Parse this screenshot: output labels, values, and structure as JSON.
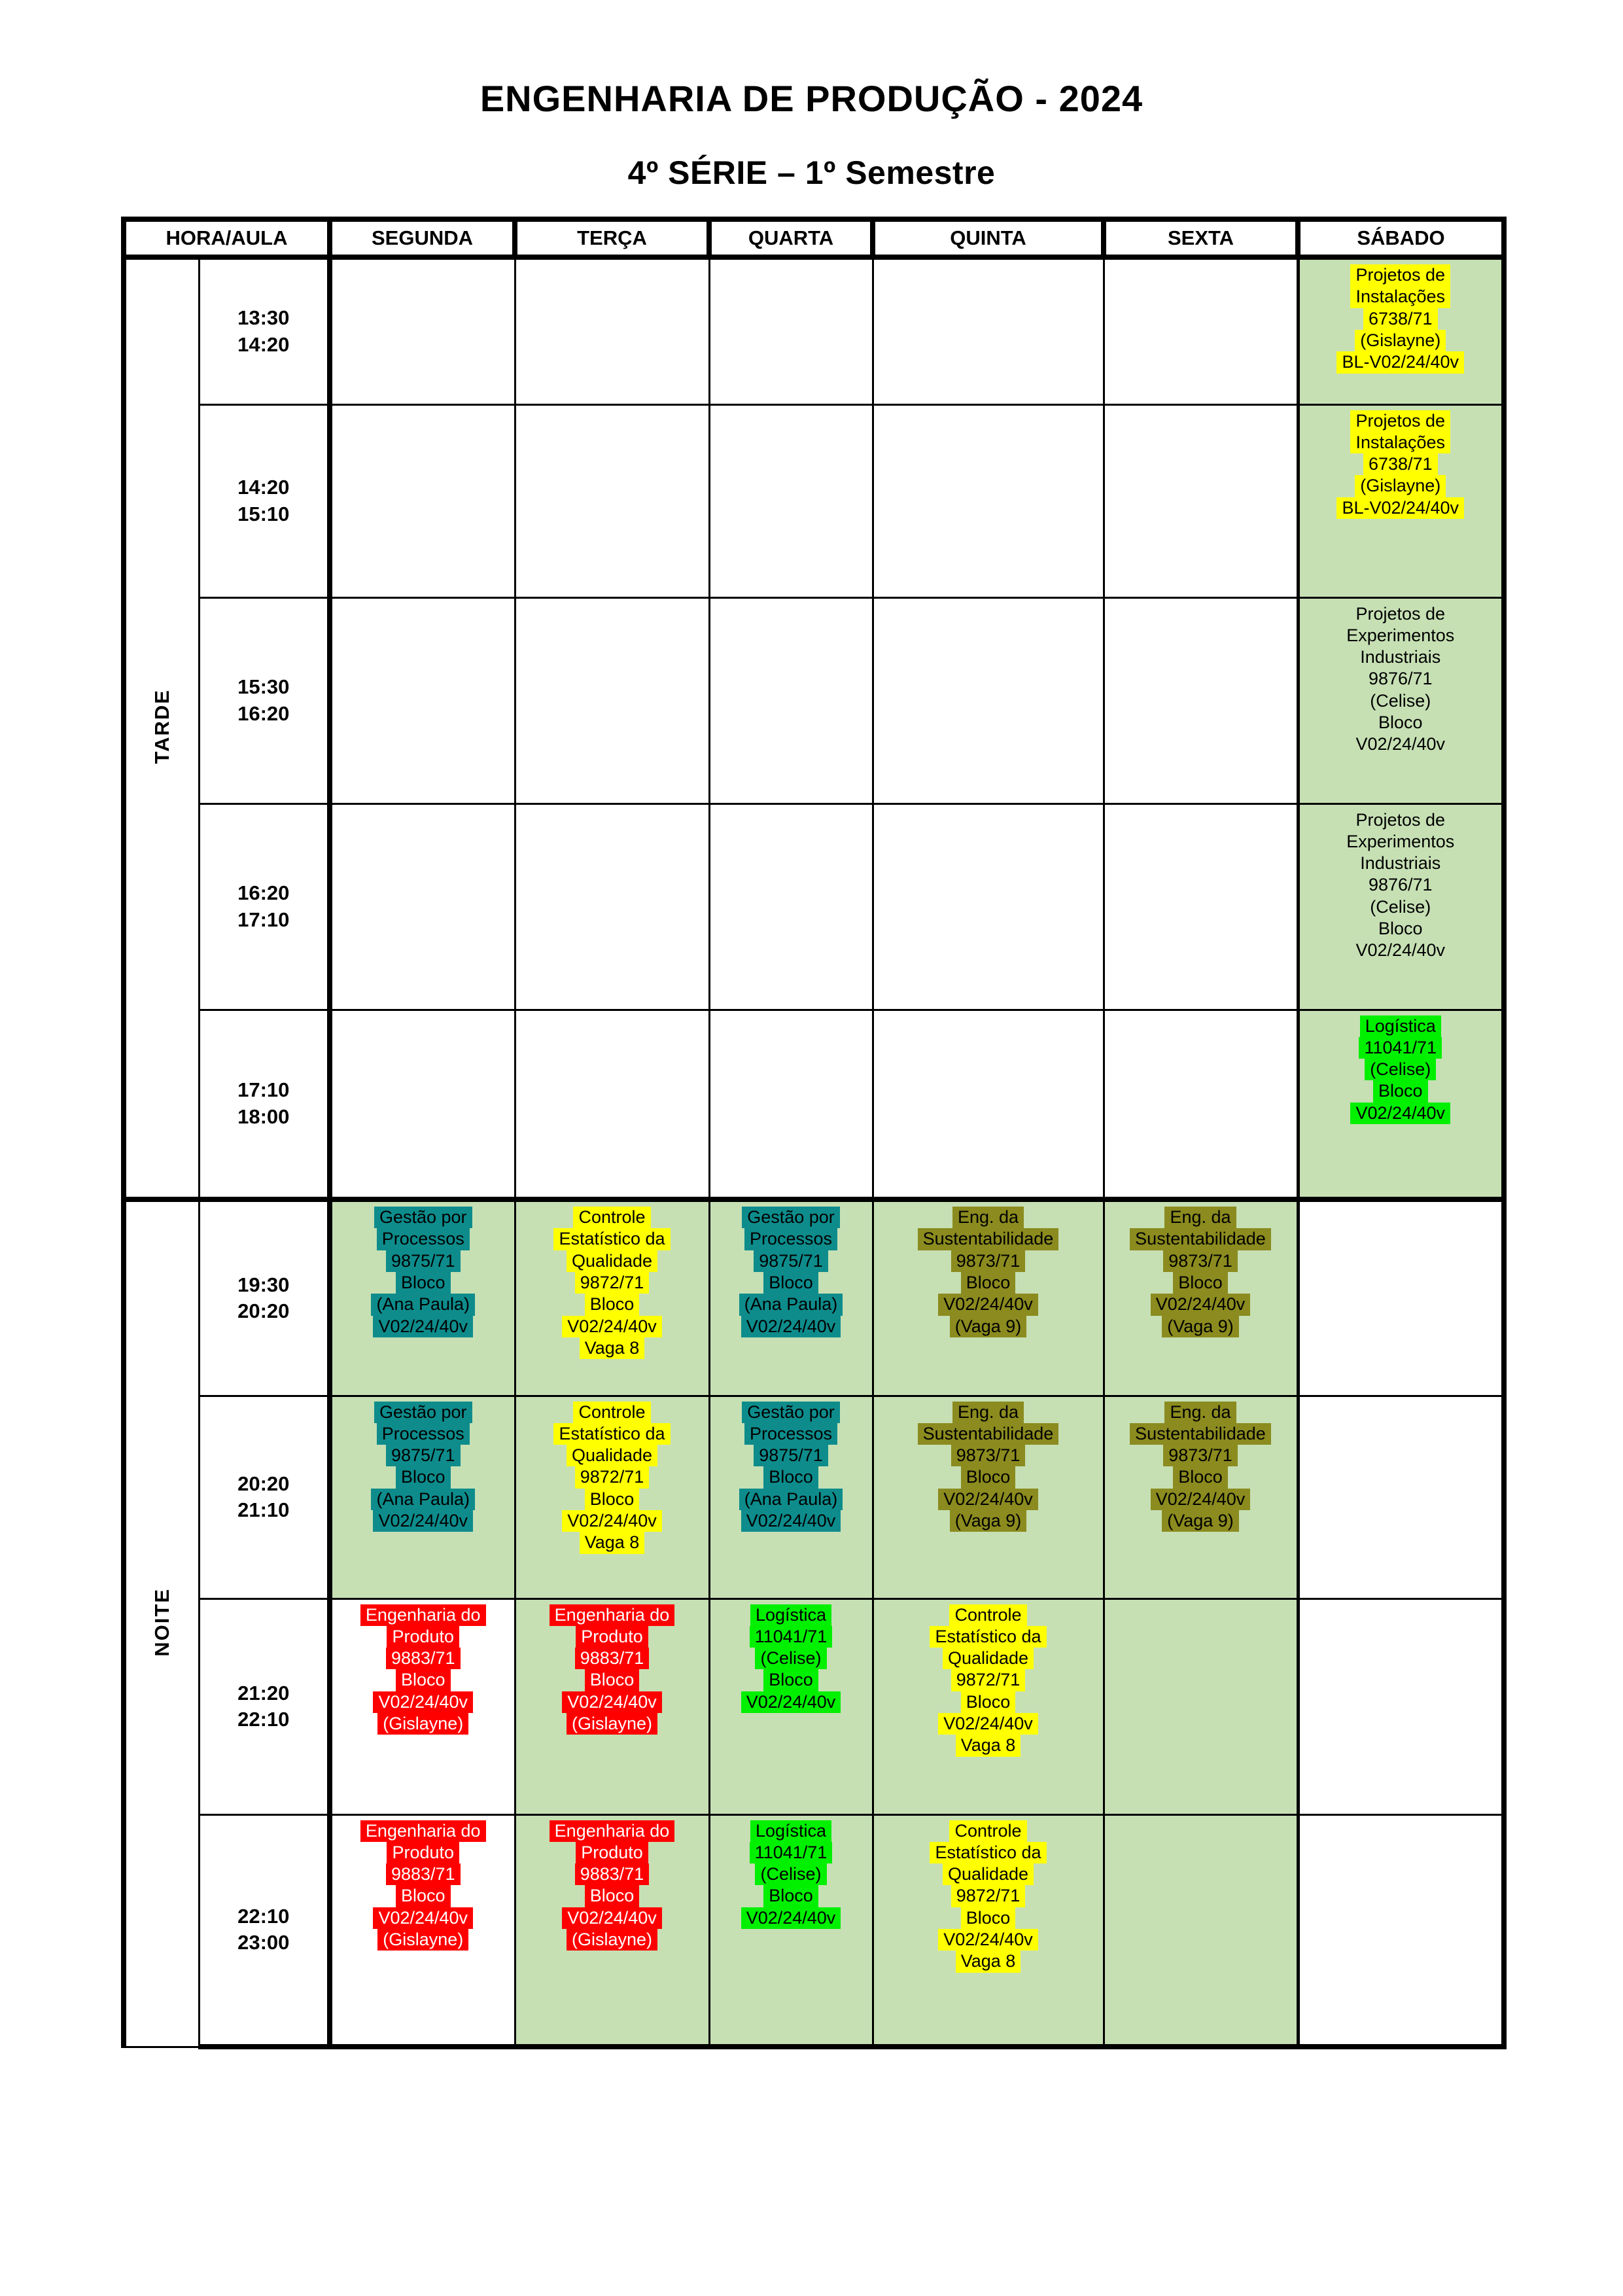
{
  "title": "ENGENHARIA DE PRODUÇÃO - 2024",
  "subtitle": "4º SÉRIE – 1º Semestre",
  "colors": {
    "cell_green_bg": "#c6e0b4",
    "highlight_yellow": "#ffff00",
    "highlight_bright_green": "#00f000",
    "highlight_teal": "#0e8c8c",
    "highlight_olive": "#8b8b1f",
    "highlight_red": "#ff0000",
    "text_black": "#000000",
    "text_white": "#ffffff"
  },
  "table": {
    "headers": [
      "HORA/AULA",
      "SEGUNDA",
      "TERÇA",
      "QUARTA",
      "QUINTA",
      "SEXTA",
      "SÁBADO"
    ],
    "day_keys": [
      "segunda",
      "terca",
      "quarta",
      "quinta",
      "sexta",
      "sabado"
    ],
    "sections": [
      {
        "label": "TARDE",
        "rows": [
          {
            "time": {
              "start": "13:30",
              "end": "14:20"
            },
            "cells": [
              {
                "bg": "white"
              },
              {
                "bg": "white"
              },
              {
                "bg": "white"
              },
              {
                "bg": "white"
              },
              {
                "bg": "white"
              },
              {
                "bg": "green",
                "highlight": "yellow",
                "text": "black",
                "lines": [
                  "Projetos de",
                  "Instalações",
                  "6738/71",
                  "(Gislayne)",
                  "BL-V02/24/40v"
                ]
              }
            ]
          },
          {
            "time": {
              "start": "14:20",
              "end": "15:10"
            },
            "cells": [
              {
                "bg": "white"
              },
              {
                "bg": "white"
              },
              {
                "bg": "white"
              },
              {
                "bg": "white"
              },
              {
                "bg": "white"
              },
              {
                "bg": "green",
                "highlight": "yellow",
                "text": "black",
                "lines": [
                  "Projetos de",
                  "Instalações",
                  "6738/71",
                  "(Gislayne)",
                  "BL-V02/24/40v"
                ]
              }
            ]
          },
          {
            "time": {
              "start": "15:30",
              "end": "16:20"
            },
            "cells": [
              {
                "bg": "white"
              },
              {
                "bg": "white"
              },
              {
                "bg": "white"
              },
              {
                "bg": "white"
              },
              {
                "bg": "white"
              },
              {
                "bg": "green",
                "highlight": "none",
                "text": "black",
                "lines": [
                  "Projetos de",
                  "Experimentos",
                  "Industriais",
                  "9876/71",
                  "(Celise)",
                  "Bloco",
                  "V02/24/40v"
                ]
              }
            ]
          },
          {
            "time": {
              "start": "16:20",
              "end": "17:10"
            },
            "cells": [
              {
                "bg": "white"
              },
              {
                "bg": "white"
              },
              {
                "bg": "white"
              },
              {
                "bg": "white"
              },
              {
                "bg": "white"
              },
              {
                "bg": "green",
                "highlight": "none",
                "text": "black",
                "lines": [
                  "Projetos de",
                  "Experimentos",
                  "Industriais",
                  "9876/71",
                  "(Celise)",
                  "Bloco",
                  "V02/24/40v"
                ]
              }
            ]
          },
          {
            "time": {
              "start": "17:10",
              "end": "18:00"
            },
            "cells": [
              {
                "bg": "white"
              },
              {
                "bg": "white"
              },
              {
                "bg": "white"
              },
              {
                "bg": "white"
              },
              {
                "bg": "white"
              },
              {
                "bg": "green",
                "highlight": "bright_green",
                "text": "black",
                "lines": [
                  "Logística",
                  "11041/71",
                  "(Celise)",
                  "Bloco",
                  "V02/24/40v"
                ]
              }
            ]
          }
        ]
      },
      {
        "label": "NOITE",
        "rows": [
          {
            "time": {
              "start": "19:30",
              "end": "20:20"
            },
            "cells": [
              {
                "bg": "green",
                "highlight": "teal",
                "text": "black",
                "lines": [
                  "Gestão por",
                  "Processos",
                  "9875/71",
                  "Bloco",
                  "(Ana Paula)",
                  "V02/24/40v"
                ]
              },
              {
                "bg": "green",
                "highlight": "yellow",
                "text": "black",
                "lines": [
                  "Controle",
                  "Estatístico da",
                  "Qualidade",
                  "9872/71",
                  "Bloco",
                  "V02/24/40v",
                  "Vaga 8"
                ]
              },
              {
                "bg": "green",
                "highlight": "teal",
                "text": "black",
                "lines": [
                  "Gestão por",
                  "Processos",
                  "9875/71",
                  "Bloco",
                  "(Ana Paula)",
                  "V02/24/40v"
                ]
              },
              {
                "bg": "green",
                "highlight": "olive",
                "text": "black",
                "lines": [
                  "Eng. da",
                  "Sustentabilidade",
                  "9873/71",
                  "Bloco",
                  "V02/24/40v",
                  "(Vaga 9)"
                ]
              },
              {
                "bg": "green",
                "highlight": "olive",
                "text": "black",
                "lines": [
                  "Eng. da",
                  "Sustentabilidade",
                  "9873/71",
                  "Bloco",
                  "V02/24/40v",
                  "(Vaga 9)"
                ]
              },
              {
                "bg": "white"
              }
            ]
          },
          {
            "time": {
              "start": "20:20",
              "end": "21:10"
            },
            "cells": [
              {
                "bg": "green",
                "highlight": "teal",
                "text": "black",
                "lines": [
                  "Gestão por",
                  "Processos",
                  "9875/71",
                  "Bloco",
                  "(Ana Paula)",
                  "V02/24/40v"
                ]
              },
              {
                "bg": "green",
                "highlight": "yellow",
                "text": "black",
                "lines": [
                  "Controle",
                  "Estatístico da",
                  "Qualidade",
                  "9872/71",
                  "Bloco",
                  "V02/24/40v",
                  "Vaga 8"
                ]
              },
              {
                "bg": "green",
                "highlight": "teal",
                "text": "black",
                "lines": [
                  "Gestão por",
                  "Processos",
                  "9875/71",
                  "Bloco",
                  "(Ana Paula)",
                  "V02/24/40v"
                ]
              },
              {
                "bg": "green",
                "highlight": "olive",
                "text": "black",
                "lines": [
                  "Eng. da",
                  "Sustentabilidade",
                  "9873/71",
                  "Bloco",
                  "V02/24/40v",
                  "(Vaga 9)"
                ]
              },
              {
                "bg": "green",
                "highlight": "olive",
                "text": "black",
                "lines": [
                  "Eng. da",
                  "Sustentabilidade",
                  "9873/71",
                  "Bloco",
                  "V02/24/40v",
                  "(Vaga 9)"
                ]
              },
              {
                "bg": "white"
              }
            ]
          },
          {
            "time": {
              "start": "21:20",
              "end": "22:10"
            },
            "cells": [
              {
                "bg": "white",
                "highlight": "red",
                "text": "white",
                "lines": [
                  "Engenharia do",
                  "Produto",
                  "9883/71",
                  "Bloco",
                  "V02/24/40v",
                  "(Gislayne)"
                ]
              },
              {
                "bg": "green",
                "highlight": "red",
                "text": "white",
                "lines": [
                  "Engenharia do",
                  "Produto",
                  "9883/71",
                  "Bloco",
                  "V02/24/40v",
                  "(Gislayne)"
                ]
              },
              {
                "bg": "green",
                "highlight": "bright_green",
                "text": "black",
                "lines": [
                  "Logística",
                  "11041/71",
                  "(Celise)",
                  "Bloco",
                  "V02/24/40v"
                ]
              },
              {
                "bg": "green",
                "highlight": "yellow",
                "text": "black",
                "lines": [
                  "Controle",
                  "Estatístico da",
                  "Qualidade",
                  "9872/71",
                  "Bloco",
                  "V02/24/40v",
                  "Vaga 8"
                ]
              },
              {
                "bg": "green"
              },
              {
                "bg": "white"
              }
            ]
          },
          {
            "time": {
              "start": "22:10",
              "end": "23:00"
            },
            "cells": [
              {
                "bg": "white",
                "highlight": "red",
                "text": "white",
                "lines": [
                  "Engenharia do",
                  "Produto",
                  "9883/71",
                  "Bloco",
                  "V02/24/40v",
                  "(Gislayne)"
                ]
              },
              {
                "bg": "green",
                "highlight": "red",
                "text": "white",
                "lines": [
                  "Engenharia do",
                  "Produto",
                  "9883/71",
                  "Bloco",
                  "V02/24/40v",
                  "(Gislayne)"
                ]
              },
              {
                "bg": "green",
                "highlight": "bright_green",
                "text": "black",
                "lines": [
                  "Logística",
                  "11041/71",
                  "(Celise)",
                  "Bloco",
                  "V02/24/40v"
                ]
              },
              {
                "bg": "green",
                "highlight": "yellow",
                "text": "black",
                "lines": [
                  "Controle",
                  "Estatístico da",
                  "Qualidade",
                  "9872/71",
                  "Bloco",
                  "V02/24/40v",
                  "Vaga 8"
                ]
              },
              {
                "bg": "green"
              },
              {
                "bg": "white"
              }
            ]
          }
        ]
      }
    ]
  }
}
